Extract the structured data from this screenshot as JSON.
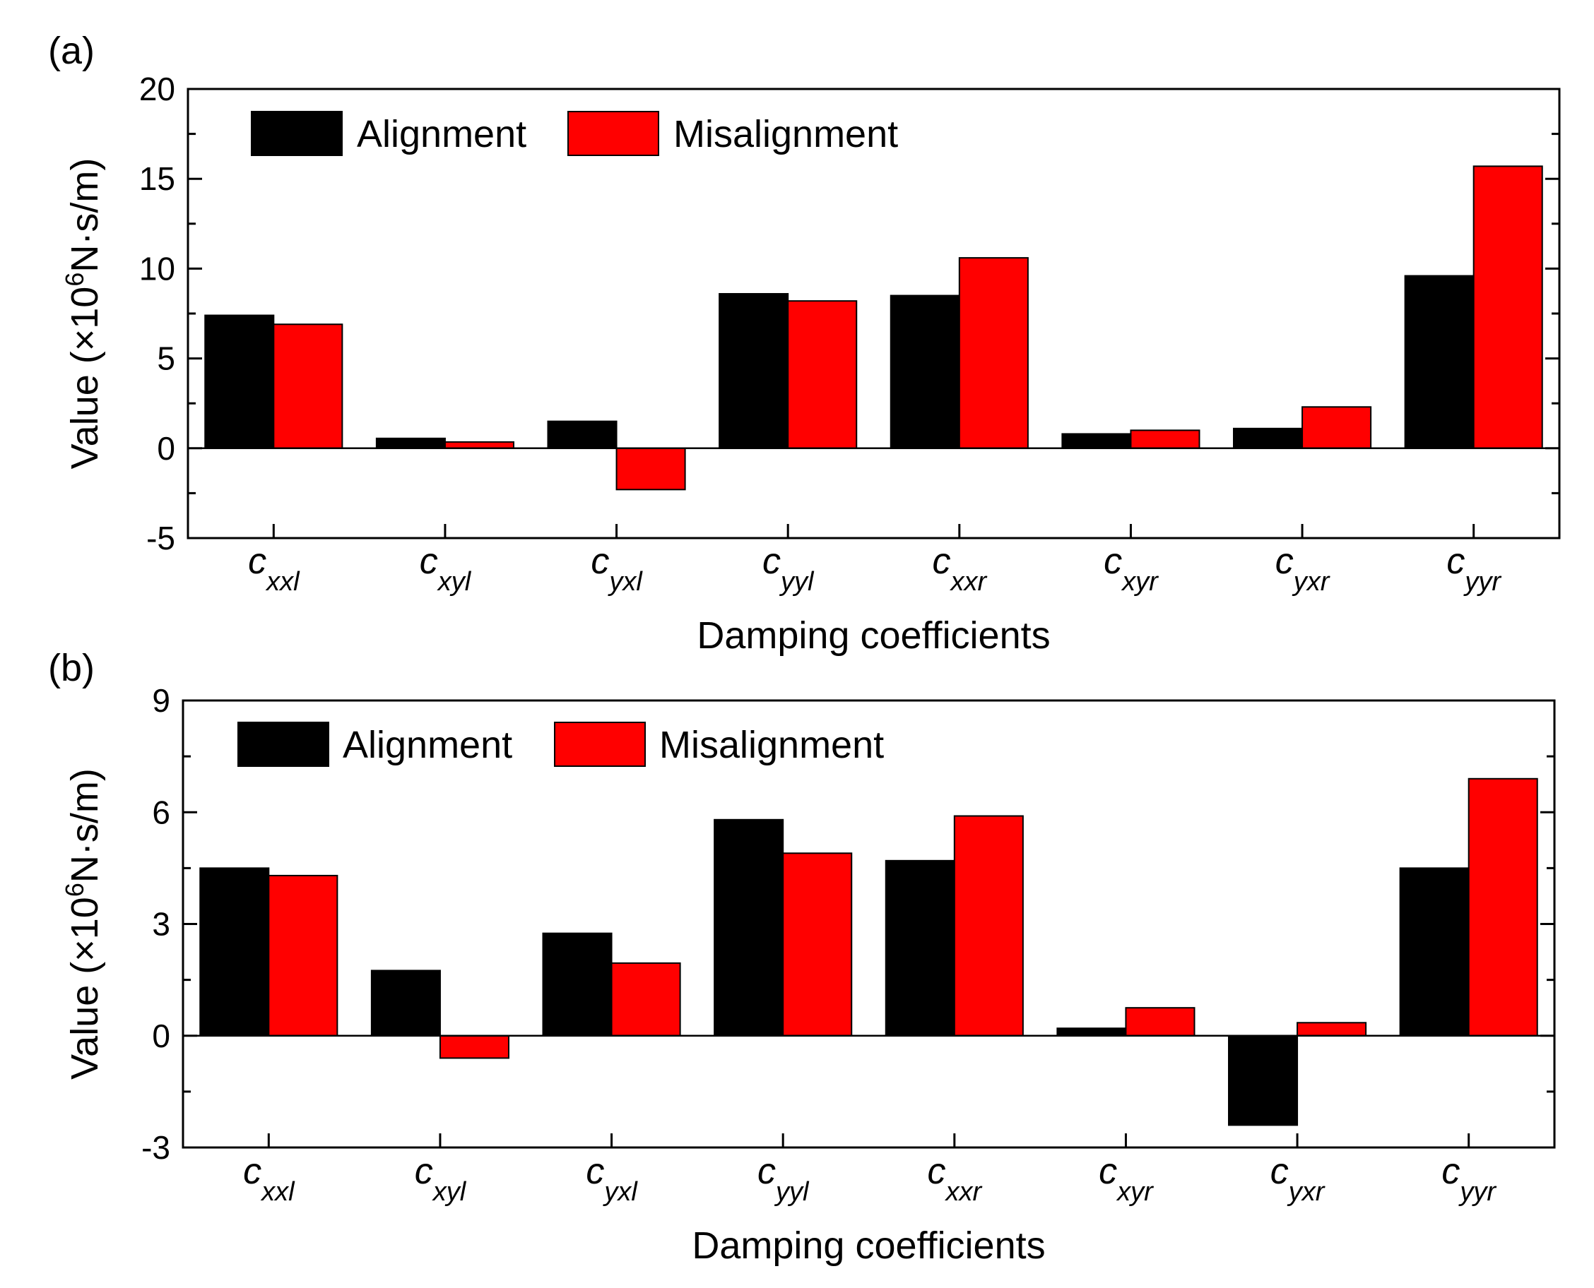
{
  "figure": {
    "panels": [
      "(a)",
      "(b)"
    ]
  },
  "colors": {
    "alignment": "#000000",
    "misalignment": "#ff0000",
    "axis": "#000000",
    "background": "#ffffff"
  },
  "chart_data": [
    {
      "type": "bar",
      "panel_label": "(a)",
      "xlabel": "Damping coefficients",
      "ylabel_prefix": "Value (×10",
      "ylabel_exponent": "6",
      "ylabel_suffix": "N·s/m)",
      "categories": [
        {
          "base": "c",
          "sub": "xxl"
        },
        {
          "base": "c",
          "sub": "xyl"
        },
        {
          "base": "c",
          "sub": "yxl"
        },
        {
          "base": "c",
          "sub": "yyl"
        },
        {
          "base": "c",
          "sub": "xxr"
        },
        {
          "base": "c",
          "sub": "xyr"
        },
        {
          "base": "c",
          "sub": "yxr"
        },
        {
          "base": "c",
          "sub": "yyr"
        }
      ],
      "series": [
        {
          "name": "Alignment",
          "color": "#000000",
          "values": [
            7.4,
            0.55,
            1.5,
            8.6,
            8.5,
            0.8,
            1.1,
            9.6
          ]
        },
        {
          "name": "Misalignment",
          "color": "#ff0000",
          "values": [
            6.9,
            0.35,
            -2.3,
            8.2,
            10.6,
            1.0,
            2.3,
            15.7
          ]
        }
      ],
      "ylim": [
        -5,
        20
      ],
      "yticks": [
        "-5",
        "0",
        "5",
        "10",
        "15",
        "20"
      ],
      "minor_tick_step": 2.5,
      "legend": "top-left",
      "grid": false
    },
    {
      "type": "bar",
      "panel_label": "(b)",
      "xlabel": "Damping coefficients",
      "ylabel_prefix": "Value (×10",
      "ylabel_exponent": "6",
      "ylabel_suffix": "N·s/m)",
      "categories": [
        {
          "base": "c",
          "sub": "xxl"
        },
        {
          "base": "c",
          "sub": "xyl"
        },
        {
          "base": "c",
          "sub": "yxl"
        },
        {
          "base": "c",
          "sub": "yyl"
        },
        {
          "base": "c",
          "sub": "xxr"
        },
        {
          "base": "c",
          "sub": "xyr"
        },
        {
          "base": "c",
          "sub": "yxr"
        },
        {
          "base": "c",
          "sub": "yyr"
        }
      ],
      "series": [
        {
          "name": "Alignment",
          "color": "#000000",
          "values": [
            4.5,
            1.75,
            2.75,
            5.8,
            4.7,
            0.2,
            -2.4,
            4.5
          ]
        },
        {
          "name": "Misalignment",
          "color": "#ff0000",
          "values": [
            4.3,
            -0.6,
            1.95,
            4.9,
            5.9,
            0.75,
            0.35,
            6.9
          ]
        }
      ],
      "ylim": [
        -3,
        9
      ],
      "yticks": [
        "-3",
        "0",
        "3",
        "6",
        "9"
      ],
      "minor_tick_step": 1.5,
      "legend": "top-left",
      "grid": false
    }
  ]
}
